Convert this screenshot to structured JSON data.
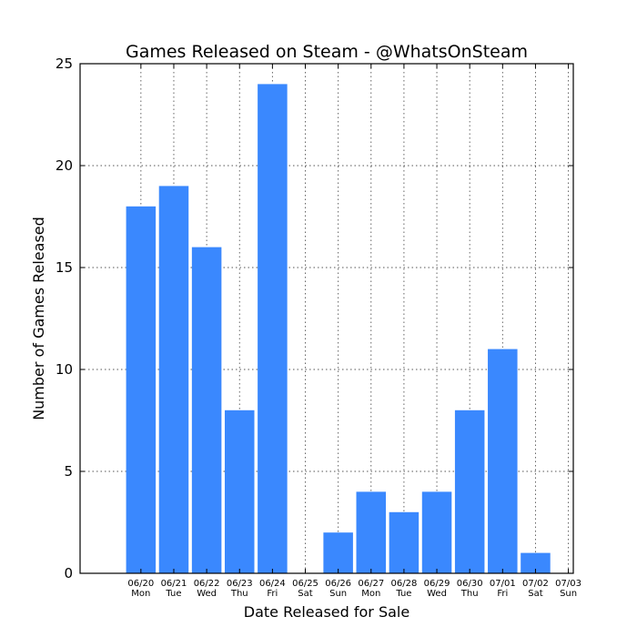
{
  "chart_data": {
    "type": "bar",
    "title": "Games Released on Steam - @WhatsOnSteam",
    "xlabel": "Date Released for Sale",
    "ylabel": "Number of Games Released",
    "ylim": [
      0,
      25
    ],
    "yticks": [
      0,
      5,
      10,
      15,
      20,
      25
    ],
    "grid": true,
    "bar_color": "#3a88fe",
    "categories": [
      {
        "date": "06/20",
        "day": "Mon"
      },
      {
        "date": "06/21",
        "day": "Tue"
      },
      {
        "date": "06/22",
        "day": "Wed"
      },
      {
        "date": "06/23",
        "day": "Thu"
      },
      {
        "date": "06/24",
        "day": "Fri"
      },
      {
        "date": "06/25",
        "day": "Sat"
      },
      {
        "date": "06/26",
        "day": "Sun"
      },
      {
        "date": "06/27",
        "day": "Mon"
      },
      {
        "date": "06/28",
        "day": "Tue"
      },
      {
        "date": "06/29",
        "day": "Wed"
      },
      {
        "date": "06/30",
        "day": "Thu"
      },
      {
        "date": "07/01",
        "day": "Fri"
      },
      {
        "date": "07/02",
        "day": "Sat"
      },
      {
        "date": "07/03",
        "day": "Sun"
      }
    ],
    "values": [
      18,
      19,
      16,
      8,
      24,
      0,
      2,
      4,
      3,
      4,
      8,
      11,
      1,
      0
    ]
  }
}
